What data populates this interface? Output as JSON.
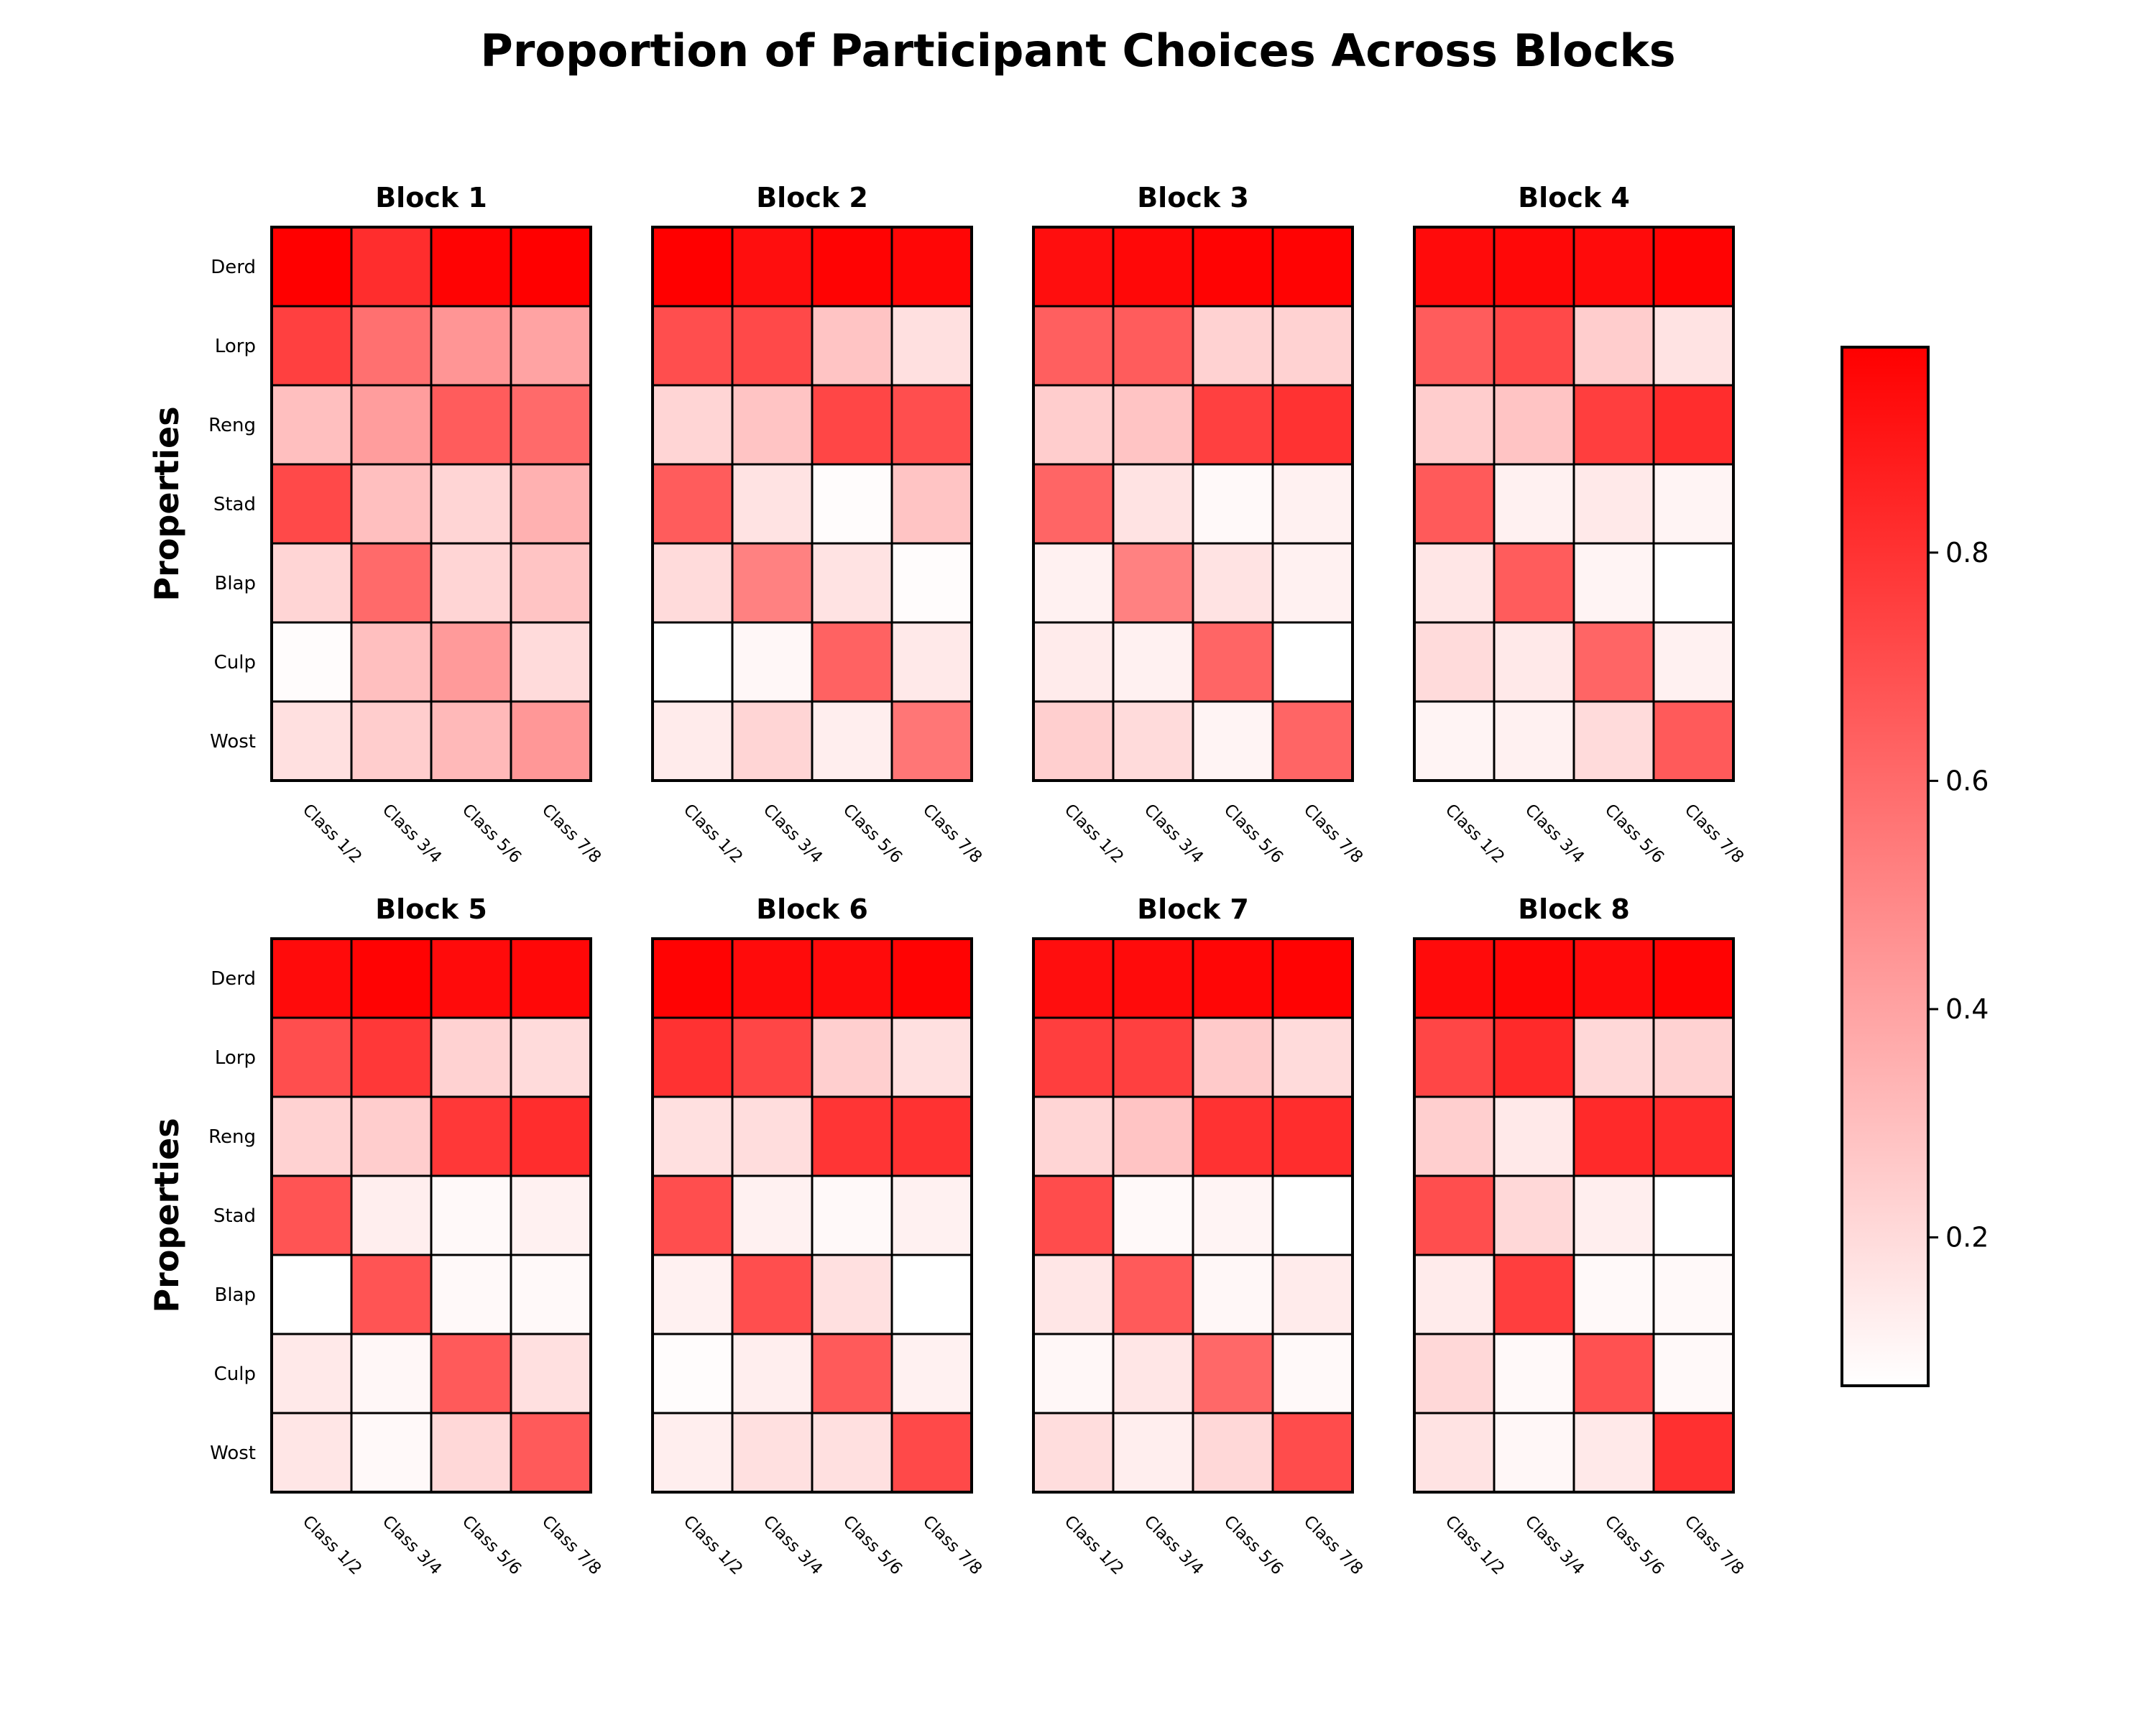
{
  "chart_data": {
    "type": "heatmap",
    "title": "Proportion of Participant Choices Across Blocks",
    "ylabel": "Properties",
    "rows": [
      "Derd",
      "Lorp",
      "Reng",
      "Stad",
      "Blap",
      "Culp",
      "Wost"
    ],
    "columns": [
      "Class 1/2",
      "Class 3/4",
      "Class 5/6",
      "Class 7/8"
    ],
    "color_scale": {
      "min": 0.07,
      "max": 0.98,
      "low_color": "#ffffff",
      "high_color": "#ff0000",
      "ticks": [
        "0.2",
        "0.4",
        "0.6",
        "0.8"
      ],
      "tick_values": [
        0.2,
        0.4,
        0.6,
        0.8
      ]
    },
    "blocks": [
      {
        "title": "Block 1",
        "values": [
          [
            0.98,
            0.82,
            0.97,
            0.98
          ],
          [
            0.75,
            0.58,
            0.45,
            0.4
          ],
          [
            0.3,
            0.42,
            0.65,
            0.6
          ],
          [
            0.72,
            0.3,
            0.22,
            0.35
          ],
          [
            0.22,
            0.6,
            0.22,
            0.28
          ],
          [
            0.08,
            0.3,
            0.43,
            0.2
          ],
          [
            0.18,
            0.25,
            0.32,
            0.44
          ]
        ]
      },
      {
        "title": "Block 2",
        "values": [
          [
            0.98,
            0.93,
            0.97,
            0.96
          ],
          [
            0.7,
            0.72,
            0.28,
            0.18
          ],
          [
            0.22,
            0.28,
            0.73,
            0.7
          ],
          [
            0.65,
            0.17,
            0.08,
            0.28
          ],
          [
            0.2,
            0.52,
            0.17,
            0.08
          ],
          [
            0.07,
            0.1,
            0.63,
            0.15
          ],
          [
            0.14,
            0.22,
            0.13,
            0.56
          ]
        ]
      },
      {
        "title": "Block 3",
        "values": [
          [
            0.93,
            0.95,
            0.97,
            0.97
          ],
          [
            0.64,
            0.65,
            0.23,
            0.23
          ],
          [
            0.25,
            0.28,
            0.75,
            0.8
          ],
          [
            0.62,
            0.17,
            0.09,
            0.12
          ],
          [
            0.12,
            0.52,
            0.17,
            0.12
          ],
          [
            0.14,
            0.12,
            0.62,
            0.07
          ],
          [
            0.24,
            0.2,
            0.11,
            0.62
          ]
        ]
      },
      {
        "title": "Block 4",
        "values": [
          [
            0.94,
            0.95,
            0.94,
            0.97
          ],
          [
            0.65,
            0.72,
            0.25,
            0.17
          ],
          [
            0.25,
            0.28,
            0.76,
            0.82
          ],
          [
            0.66,
            0.12,
            0.15,
            0.11
          ],
          [
            0.16,
            0.65,
            0.11,
            0.06
          ],
          [
            0.2,
            0.15,
            0.62,
            0.12
          ],
          [
            0.11,
            0.12,
            0.2,
            0.66
          ]
        ]
      },
      {
        "title": "Block 5",
        "values": [
          [
            0.94,
            0.97,
            0.94,
            0.95
          ],
          [
            0.7,
            0.78,
            0.23,
            0.2
          ],
          [
            0.23,
            0.25,
            0.78,
            0.82
          ],
          [
            0.68,
            0.13,
            0.09,
            0.12
          ],
          [
            0.07,
            0.68,
            0.09,
            0.09
          ],
          [
            0.15,
            0.1,
            0.66,
            0.18
          ],
          [
            0.16,
            0.09,
            0.21,
            0.66
          ]
        ]
      },
      {
        "title": "Block 6",
        "values": [
          [
            0.97,
            0.94,
            0.94,
            0.97
          ],
          [
            0.8,
            0.73,
            0.24,
            0.18
          ],
          [
            0.18,
            0.19,
            0.79,
            0.8
          ],
          [
            0.7,
            0.12,
            0.09,
            0.12
          ],
          [
            0.12,
            0.7,
            0.18,
            0.07
          ],
          [
            0.08,
            0.13,
            0.66,
            0.12
          ],
          [
            0.13,
            0.18,
            0.18,
            0.72
          ]
        ]
      },
      {
        "title": "Block 7",
        "values": [
          [
            0.93,
            0.94,
            0.96,
            0.97
          ],
          [
            0.76,
            0.75,
            0.26,
            0.2
          ],
          [
            0.22,
            0.28,
            0.8,
            0.82
          ],
          [
            0.71,
            0.09,
            0.11,
            0.07
          ],
          [
            0.16,
            0.66,
            0.1,
            0.14
          ],
          [
            0.1,
            0.16,
            0.61,
            0.09
          ],
          [
            0.19,
            0.13,
            0.21,
            0.71
          ]
        ]
      },
      {
        "title": "Block 8",
        "values": [
          [
            0.94,
            0.96,
            0.94,
            0.97
          ],
          [
            0.73,
            0.83,
            0.21,
            0.23
          ],
          [
            0.24,
            0.15,
            0.83,
            0.82
          ],
          [
            0.7,
            0.21,
            0.13,
            0.07
          ],
          [
            0.14,
            0.76,
            0.09,
            0.09
          ],
          [
            0.21,
            0.09,
            0.69,
            0.09
          ],
          [
            0.17,
            0.1,
            0.15,
            0.81
          ]
        ]
      }
    ]
  }
}
